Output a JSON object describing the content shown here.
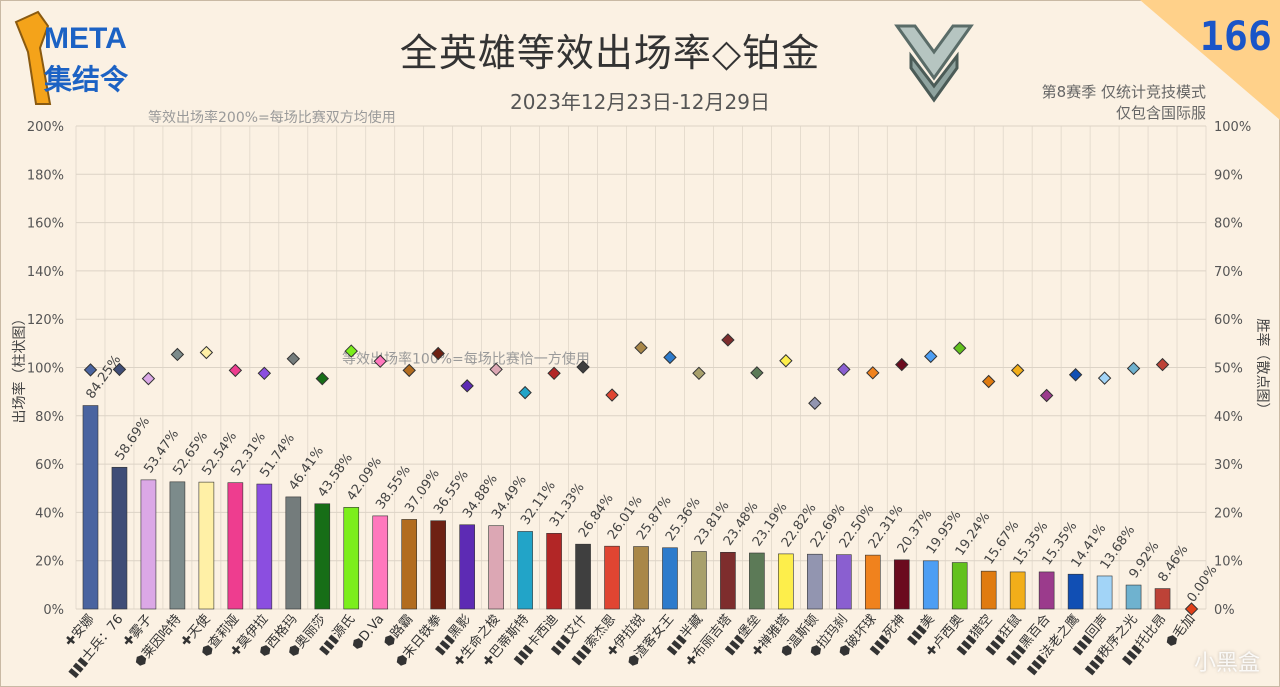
{
  "header": {
    "title": "全英雄等效出场率◇铂金",
    "date_range": "2023年12月23日-12月29日",
    "note_line1": "第8赛季 仅统计竞技模式",
    "note_line2": "仅包含国际服",
    "season_number": "166",
    "logo_line1": "META",
    "logo_line2": "集结令",
    "watermark": "小黑盒"
  },
  "colors": {
    "background": "#fbf1e3",
    "grid": "#dcd3c6",
    "axis_text": "#555555"
  },
  "chart_data": {
    "type": "bar",
    "title": "全英雄等效出场率◇铂金",
    "ylabel_left": "出场率（柱状图）",
    "ylabel_right": "胜率（散点图）",
    "ylim_left": [
      0,
      200
    ],
    "ylim_right": [
      0,
      100
    ],
    "yticks_left": [
      "0%",
      "20%",
      "40%",
      "60%",
      "80%",
      "100%",
      "120%",
      "140%",
      "160%",
      "180%",
      "200%"
    ],
    "yticks_right": [
      "0%",
      "10%",
      "20%",
      "30%",
      "40%",
      "50%",
      "60%",
      "70%",
      "80%",
      "90%",
      "100%"
    ],
    "grid": true,
    "annotations": [
      {
        "text": "等效出场率200%=每场比赛双方均使用",
        "y": 200
      },
      {
        "text": "等效出场率100%=每场比赛恰一方使用",
        "y": 100
      }
    ],
    "categories": [
      "安娜",
      "士兵：76",
      "雾子",
      "莱因哈特",
      "天使",
      "查莉娅",
      "莫伊拉",
      "西格玛",
      "奥丽莎",
      "源氏",
      "D.Va",
      "路霸",
      "末日铁拳",
      "黑影",
      "生命之梭",
      "巴蒂斯特",
      "卡西迪",
      "艾什",
      "索杰恩",
      "伊拉锐",
      "渣客女王",
      "半藏",
      "布丽吉塔",
      "堡垒",
      "禅雅塔",
      "温斯顿",
      "拉玛刹",
      "破坏球",
      "死神",
      "美",
      "卢西奥",
      "猎空",
      "狂鼠",
      "黑百合",
      "法老之鹰",
      "回声",
      "秩序之光",
      "托比昂",
      "毛加"
    ],
    "category_icons": [
      "support",
      "damage",
      "support",
      "tank",
      "support",
      "tank",
      "support",
      "tank",
      "tank",
      "damage",
      "tank",
      "tank",
      "tank",
      "damage",
      "support",
      "support",
      "damage",
      "damage",
      "damage",
      "support",
      "tank",
      "damage",
      "support",
      "damage",
      "support",
      "tank",
      "tank",
      "tank",
      "damage",
      "damage",
      "support",
      "damage",
      "damage",
      "damage",
      "damage",
      "damage",
      "damage",
      "damage",
      "tank"
    ],
    "bar_labels": [
      "84.25%",
      "58.69%",
      "53.47%",
      "52.65%",
      "52.54%",
      "52.31%",
      "51.74%",
      "46.41%",
      "43.58%",
      "42.09%",
      "38.55%",
      "37.09%",
      "36.55%",
      "34.88%",
      "34.49%",
      "32.11%",
      "31.33%",
      "26.84%",
      "26.01%",
      "25.87%",
      "25.36%",
      "23.81%",
      "23.48%",
      "23.19%",
      "22.82%",
      "22.69%",
      "22.50%",
      "22.31%",
      "20.37%",
      "19.95%",
      "19.24%",
      "15.67%",
      "15.35%",
      "15.35%",
      "14.41%",
      "13.68%",
      "9.92%",
      "8.46%",
      "0.00%"
    ],
    "series": [
      {
        "name": "出场率",
        "values": [
          84.25,
          58.69,
          53.47,
          52.65,
          52.54,
          52.31,
          51.74,
          46.41,
          43.58,
          42.09,
          38.55,
          37.09,
          36.55,
          34.88,
          34.49,
          32.11,
          31.33,
          26.84,
          26.01,
          25.87,
          25.36,
          23.81,
          23.48,
          23.19,
          22.82,
          22.69,
          22.5,
          22.31,
          20.37,
          19.95,
          19.24,
          15.67,
          15.35,
          15.35,
          14.41,
          13.68,
          9.92,
          8.46,
          0.0
        ]
      },
      {
        "name": "胜率",
        "values": [
          49.5,
          49.6,
          47.7,
          52.7,
          53.1,
          49.4,
          48.8,
          51.8,
          47.7,
          53.4,
          51.3,
          49.4,
          52.9,
          46.2,
          49.6,
          44.8,
          48.8,
          50.1,
          44.3,
          54.1,
          52.1,
          48.8,
          55.7,
          48.9,
          51.4,
          42.6,
          49.6,
          48.9,
          50.6,
          52.3,
          54.0,
          47.1,
          49.4,
          44.2,
          48.5,
          47.8,
          49.8,
          50.6,
          0.0
        ]
      }
    ],
    "bar_colors": [
      "#4a64a0",
      "#3f4d77",
      "#dba8e6",
      "#7c8b8b",
      "#fff0a6",
      "#ee3d8f",
      "#8b4ee0",
      "#747c7c",
      "#176e17",
      "#7cee1c",
      "#ff78bd",
      "#b26c1f",
      "#6e2113",
      "#5d2bb4",
      "#dca7b4",
      "#22a4c8",
      "#b22626",
      "#3f3f3f",
      "#e04532",
      "#a98748",
      "#2d7bcc",
      "#a8a06c",
      "#7e2d2d",
      "#5c7a57",
      "#fdee4b",
      "#9295b0",
      "#8a5fd0",
      "#f0821d",
      "#6b0b1e",
      "#4d9ef3",
      "#63c11d",
      "#e07b10",
      "#f2ae19",
      "#9b3b8c",
      "#114fb4",
      "#a2d4f7",
      "#6fb2cf",
      "#bd4237",
      "#e0401a"
    ]
  }
}
